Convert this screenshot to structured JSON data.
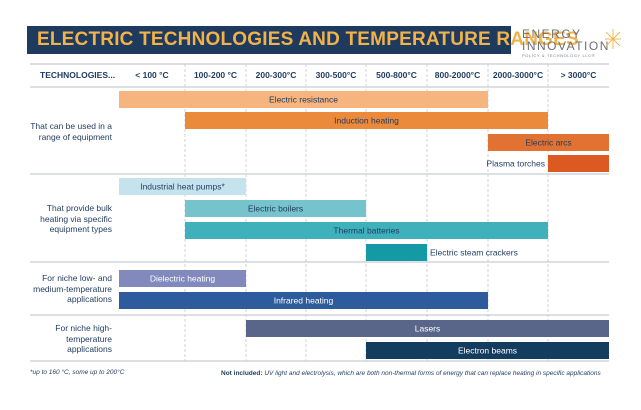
{
  "title": "ELECTRIC TECHNOLOGIES AND TEMPERATURE RANGES",
  "logo": {
    "line1": "ENERGY",
    "line2": "INNOVATION",
    "line3": "POLICY & TECHNOLOGY LLC®"
  },
  "chart_data": {
    "type": "range-bar",
    "column_header": "TECHNOLOGIES...",
    "categories": [
      "< 100 °C",
      "100-200 °C",
      "200-300°C",
      "300-500°C",
      "500-800°C",
      "800-2000°C",
      "2000-3000°C",
      "> 3000°C"
    ],
    "groups": [
      {
        "label": "That can be used in a range of equipment",
        "bars": [
          {
            "name": "Electric resistance",
            "range": [
              "< 100 °C",
              "800-2000°C"
            ],
            "color": "#f6b47f",
            "label_outside": false
          },
          {
            "name": "Induction heating",
            "range": [
              "100-200 °C",
              "2000-3000°C"
            ],
            "color": "#ea8a3a",
            "label_outside": false
          },
          {
            "name": "Electric arcs",
            "range": [
              "2000-3000°C",
              "> 3000°C"
            ],
            "color": "#e27232",
            "label_outside": false
          },
          {
            "name": "Plasma torches",
            "range": [
              "> 3000°C",
              "> 3000°C"
            ],
            "color": "#dc5a22",
            "label_outside": true
          }
        ]
      },
      {
        "label": "That provide bulk heating via specific equipment types",
        "bars": [
          {
            "name": "Industrial heat pumps*",
            "range": [
              "< 100 °C",
              "100-200 °C"
            ],
            "color": "#c5e3ec",
            "label_outside": false
          },
          {
            "name": "Electric boilers",
            "range": [
              "100-200 °C",
              "300-500°C"
            ],
            "color": "#76c3cc",
            "label_outside": false
          },
          {
            "name": "Thermal batteries",
            "range": [
              "100-200 °C",
              "2000-3000°C"
            ],
            "color": "#3fb1ba",
            "label_outside": false
          },
          {
            "name": "Electric steam crackers",
            "range": [
              "500-800°C",
              "500-800°C"
            ],
            "color": "#139aa5",
            "label_outside": true
          }
        ]
      },
      {
        "label": "For niche low- and medium-temperature applications",
        "bars": [
          {
            "name": "Dielectric heating",
            "range": [
              "< 100 °C",
              "100-200 °C"
            ],
            "color": "#8189bd",
            "label_outside": false
          },
          {
            "name": "Infrared heating",
            "range": [
              "< 100 °C",
              "800-2000°C"
            ],
            "color": "#2d5b9b",
            "label_outside": false
          }
        ]
      },
      {
        "label": "For niche high-temperature applications",
        "bars": [
          {
            "name": "Lasers",
            "range": [
              "200-300°C",
              "> 3000°C"
            ],
            "color": "#5a6689",
            "label_outside": false
          },
          {
            "name": "Electron beams",
            "range": [
              "500-800°C",
              "> 3000°C"
            ],
            "color": "#143c5e",
            "label_outside": false
          }
        ]
      }
    ],
    "footnote": "*up to 160 °C, some up to 200°C",
    "note_bold": "Not included:",
    "note_text": " UV light and electrolysis, which are both non-thermal forms of energy that can replace heating in specific applications"
  }
}
